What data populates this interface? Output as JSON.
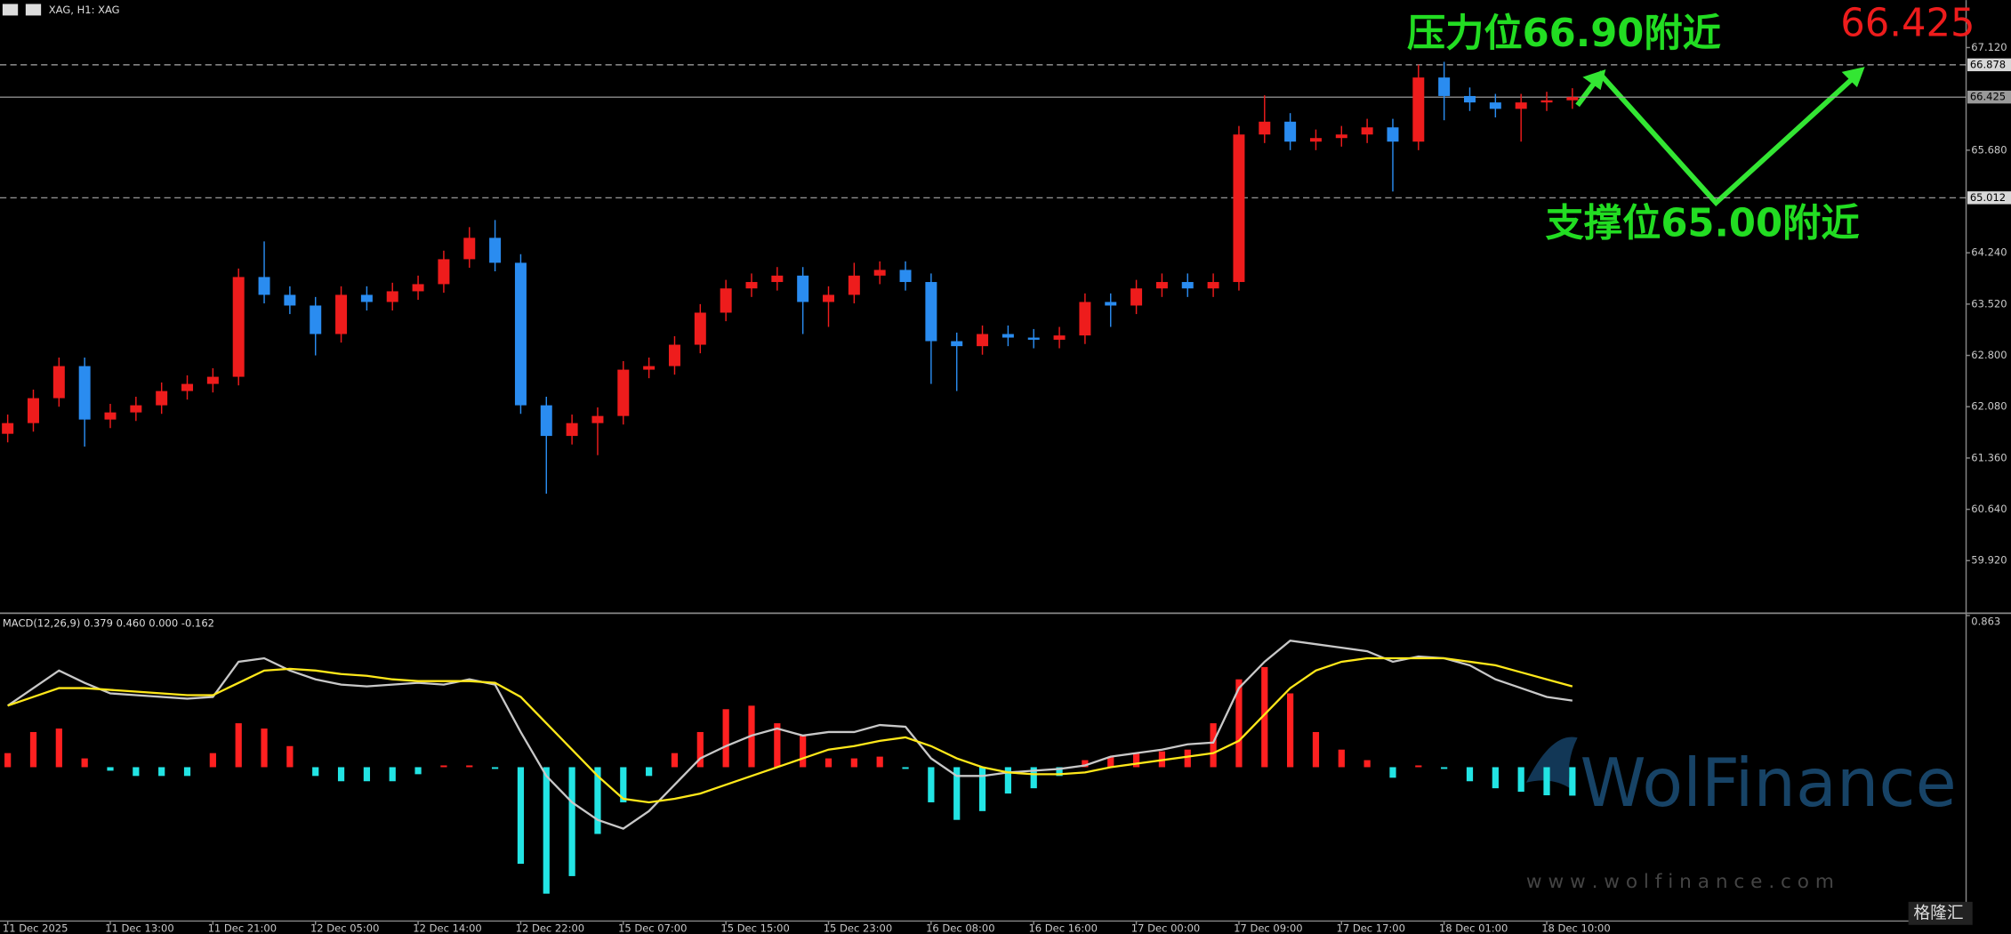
{
  "header": "XAG, H1: XAG",
  "chart_data": [
    {
      "type": "candlestick",
      "categories": [
        "11 Dec 2025",
        null,
        null,
        null,
        "11 Dec 13:00",
        null,
        null,
        null,
        "11 Dec 21:00",
        null,
        null,
        null,
        "12 Dec 05:00",
        null,
        null,
        null,
        "12 Dec 14:00",
        null,
        null,
        null,
        "12 Dec 22:00",
        null,
        null,
        null,
        "15 Dec 07:00",
        null,
        null,
        null,
        "15 Dec 15:00",
        null,
        null,
        null,
        "15 Dec 23:00",
        null,
        null,
        null,
        "16 Dec 08:00",
        null,
        null,
        null,
        "16 Dec 16:00",
        null,
        null,
        null,
        "17 Dec 00:00",
        null,
        null,
        null,
        "17 Dec 09:00",
        null,
        null,
        null,
        "17 Dec 17:00",
        null,
        null,
        null,
        "18 Dec 01:00",
        null,
        null,
        null,
        "18 Dec 10:00",
        null
      ],
      "open": [
        61.7,
        61.85,
        62.2,
        62.65,
        61.9,
        62.0,
        62.1,
        62.3,
        62.4,
        62.5,
        63.9,
        63.65,
        63.5,
        63.1,
        63.65,
        63.55,
        63.7,
        63.8,
        64.15,
        64.45,
        64.1,
        62.1,
        61.67,
        61.85,
        61.95,
        62.6,
        62.65,
        62.95,
        63.4,
        63.74,
        63.83,
        63.92,
        63.55,
        63.65,
        63.92,
        64.0,
        63.83,
        63.0,
        62.93,
        63.1,
        63.05,
        63.02,
        63.08,
        63.55,
        63.5,
        63.74,
        63.83,
        63.74,
        63.83,
        65.9,
        66.08,
        65.8,
        65.85,
        65.9,
        66.0,
        65.8,
        66.7,
        66.44,
        66.35,
        66.26,
        66.35,
        66.38
      ],
      "high": [
        61.97,
        62.32,
        62.77,
        62.77,
        62.12,
        62.22,
        62.42,
        62.52,
        62.62,
        64.02,
        64.4,
        63.77,
        63.62,
        63.77,
        63.77,
        63.82,
        63.92,
        64.27,
        64.6,
        64.7,
        64.22,
        62.22,
        61.97,
        62.07,
        62.72,
        62.77,
        63.07,
        63.52,
        63.86,
        63.95,
        64.04,
        64.04,
        63.77,
        64.1,
        64.12,
        64.12,
        63.95,
        63.12,
        63.22,
        63.22,
        63.17,
        63.2,
        63.67,
        63.67,
        63.86,
        63.95,
        63.95,
        63.95,
        66.02,
        66.45,
        66.2,
        65.97,
        66.02,
        66.12,
        66.12,
        66.88,
        66.92,
        66.56,
        66.47,
        66.47,
        66.5,
        66.55
      ],
      "low": [
        61.58,
        61.73,
        62.08,
        61.52,
        61.78,
        61.88,
        61.98,
        62.18,
        62.28,
        62.38,
        63.53,
        63.38,
        62.8,
        62.98,
        63.43,
        63.43,
        63.58,
        63.68,
        64.03,
        63.98,
        61.98,
        60.86,
        61.55,
        61.4,
        61.83,
        62.48,
        62.53,
        62.83,
        63.28,
        63.62,
        63.71,
        63.1,
        63.2,
        63.53,
        63.8,
        63.71,
        62.4,
        62.3,
        62.81,
        62.93,
        62.9,
        62.9,
        62.96,
        63.2,
        63.38,
        63.62,
        63.62,
        63.62,
        63.71,
        65.78,
        65.68,
        65.68,
        65.73,
        65.78,
        65.1,
        65.68,
        66.1,
        66.23,
        66.14,
        65.8,
        66.23,
        66.26
      ],
      "close": [
        61.85,
        62.2,
        62.65,
        61.9,
        62.0,
        62.1,
        62.3,
        62.4,
        62.5,
        63.9,
        63.65,
        63.5,
        63.1,
        63.65,
        63.55,
        63.7,
        63.8,
        64.15,
        64.45,
        64.1,
        62.1,
        61.67,
        61.85,
        61.95,
        62.6,
        62.65,
        62.95,
        63.4,
        63.74,
        63.83,
        63.92,
        63.55,
        63.65,
        63.92,
        64.0,
        63.83,
        63.0,
        62.93,
        63.1,
        63.05,
        63.02,
        63.08,
        63.55,
        63.5,
        63.74,
        63.83,
        63.74,
        63.83,
        65.9,
        66.08,
        65.8,
        65.85,
        65.9,
        66.0,
        65.8,
        66.7,
        66.44,
        66.35,
        66.26,
        66.35,
        66.38,
        66.425
      ],
      "up_color": "#ee1c1c",
      "down_color": "#2a8cf0",
      "ylim": [
        59.2,
        67.786
      ],
      "yticks": [
        {
          "value": 67.12,
          "label": "67.120"
        },
        {
          "value": 65.68,
          "label": "65.680"
        },
        {
          "value": 64.24,
          "label": "64.240"
        },
        {
          "value": 63.52,
          "label": "63.520"
        },
        {
          "value": 62.8,
          "label": "62.800"
        },
        {
          "value": 62.08,
          "label": "62.080"
        },
        {
          "value": 61.36,
          "label": "61.360"
        },
        {
          "value": 60.64,
          "label": "60.640"
        },
        {
          "value": 59.92,
          "label": "59.920"
        }
      ],
      "levels": [
        66.878,
        66.425,
        65.012
      ],
      "level_styles": [
        "dashed",
        "solid",
        "dashed"
      ],
      "annotations": {
        "resistance": "压力位66.90附近",
        "support": "支撑位65.00附近",
        "price": 66.425
      }
    },
    {
      "type": "macd",
      "title": "MACD(12,26,9) 0.379 0.460 0.000 -0.162",
      "ylim": [
        -0.854,
        0.869
      ],
      "yticks": [
        0.863
      ],
      "series": [
        {
          "style": "bar",
          "up_color": "#ff2020",
          "down_color": "#22e4e4",
          "values": [
            0.08,
            0.2,
            0.22,
            0.05,
            -0.02,
            -0.05,
            -0.05,
            -0.05,
            0.08,
            0.25,
            0.22,
            0.12,
            -0.05,
            -0.08,
            -0.08,
            -0.08,
            -0.04,
            0.01,
            0.01,
            -0.01,
            -0.55,
            -0.72,
            -0.62,
            -0.38,
            -0.2,
            -0.05,
            0.08,
            0.2,
            0.33,
            0.35,
            0.25,
            0.18,
            0.05,
            0.05,
            0.06,
            -0.01,
            -0.2,
            -0.3,
            -0.25,
            -0.15,
            -0.12,
            -0.05,
            0.04,
            0.06,
            0.08,
            0.09,
            0.1,
            0.25,
            0.5,
            0.57,
            0.42,
            0.2,
            0.1,
            0.04,
            -0.06,
            0.01,
            -0.01,
            -0.08,
            -0.12,
            -0.14,
            -0.16,
            -0.162
          ]
        },
        {
          "style": "line",
          "color": "#c8c8c8",
          "values": [
            0.35,
            0.45,
            0.55,
            0.48,
            0.42,
            0.41,
            0.4,
            0.39,
            0.4,
            0.6,
            0.62,
            0.55,
            0.5,
            0.47,
            0.46,
            0.47,
            0.48,
            0.47,
            0.5,
            0.47,
            0.2,
            -0.05,
            -0.2,
            -0.3,
            -0.35,
            -0.25,
            -0.1,
            0.05,
            0.12,
            0.18,
            0.22,
            0.18,
            0.2,
            0.2,
            0.24,
            0.23,
            0.05,
            -0.05,
            -0.05,
            -0.03,
            -0.02,
            -0.01,
            0.01,
            0.06,
            0.08,
            0.1,
            0.13,
            0.14,
            0.45,
            0.6,
            0.72,
            0.7,
            0.68,
            0.66,
            0.6,
            0.63,
            0.62,
            0.58,
            0.5,
            0.45,
            0.4,
            0.379
          ]
        },
        {
          "style": "line",
          "color": "#ffe81a",
          "values": [
            0.35,
            0.4,
            0.45,
            0.45,
            0.44,
            0.43,
            0.42,
            0.41,
            0.41,
            0.48,
            0.55,
            0.56,
            0.55,
            0.53,
            0.52,
            0.5,
            0.49,
            0.49,
            0.49,
            0.48,
            0.4,
            0.25,
            0.1,
            -0.05,
            -0.18,
            -0.2,
            -0.18,
            -0.15,
            -0.1,
            -0.05,
            0.0,
            0.05,
            0.1,
            0.12,
            0.15,
            0.17,
            0.12,
            0.05,
            0.0,
            -0.03,
            -0.04,
            -0.04,
            -0.03,
            0.0,
            0.02,
            0.04,
            0.06,
            0.08,
            0.15,
            0.3,
            0.45,
            0.55,
            0.6,
            0.62,
            0.62,
            0.62,
            0.62,
            0.6,
            0.58,
            0.54,
            0.5,
            0.46
          ]
        }
      ]
    }
  ],
  "watermark": {
    "brand": "WolFinance",
    "url": "w w w . w o l f i n a n c e . c o m",
    "logo": "格隆汇"
  }
}
